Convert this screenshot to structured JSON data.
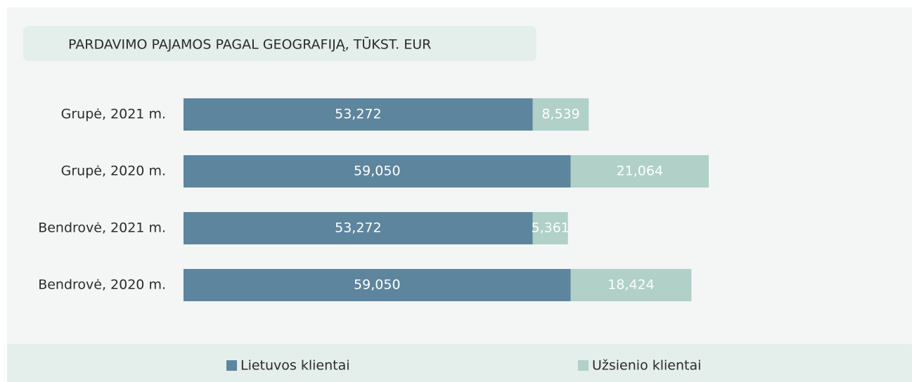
{
  "chart_data": {
    "type": "stacked-barh",
    "title": "PARDAVIMO PAJAMOS PAGAL GEOGRAFIJĄ, TŪKST. EUR",
    "categories": [
      "Grupė, 2021 m.",
      "Grupė, 2020 m.",
      "Bendrovė, 2021 m.",
      "Bendrovė, 2020 m."
    ],
    "series": [
      {
        "name": "Lietuvos klientai",
        "color": "#5e859e",
        "values": [
          53272,
          59050,
          53272,
          59050
        ],
        "value_labels": [
          "53,272",
          "59,050",
          "53,272",
          "59,050"
        ]
      },
      {
        "name": "Užsienio klientai",
        "color": "#b0d0c8",
        "values": [
          8539,
          21064,
          5361,
          18424
        ],
        "value_labels": [
          "8,539",
          "21,064",
          "5,361",
          "18,424"
        ]
      }
    ],
    "legend": "bottom"
  }
}
